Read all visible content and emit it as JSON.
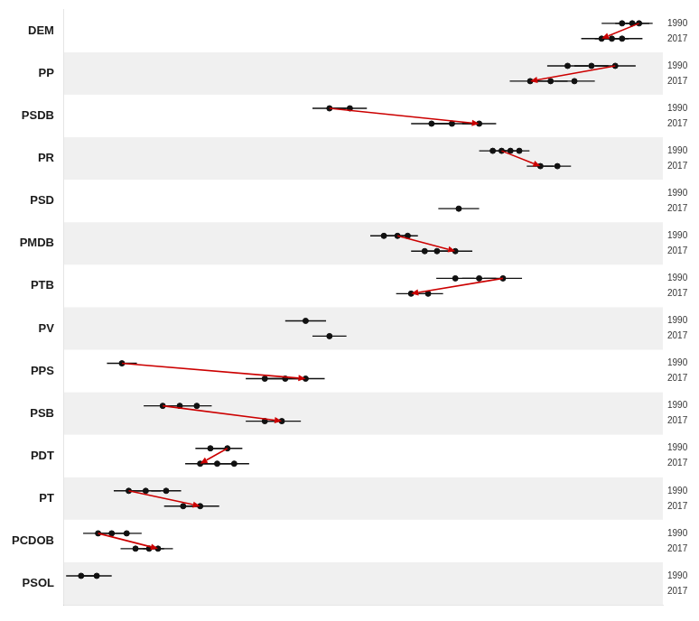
{
  "chart_data": {
    "type": "dot_plot",
    "categories": [
      "DEM",
      "PP",
      "PSDB",
      "PR",
      "PSD",
      "PMDB",
      "PTB",
      "PV",
      "PPS",
      "PSB",
      "PDT",
      "PT",
      "PCDOB",
      "PSOL"
    ],
    "series": [
      {
        "name": "1990",
        "color": "#111111",
        "values": [
          [
            0.82,
            0.835,
            0.845
          ],
          [
            0.74,
            0.775,
            0.81
          ],
          [
            0.39,
            0.42
          ],
          [
            0.63,
            0.643,
            0.656,
            0.669
          ],
          [],
          [
            0.47,
            0.49,
            0.505
          ],
          [
            0.575,
            0.61,
            0.645
          ],
          [
            0.355
          ],
          [
            0.085
          ],
          [
            0.145,
            0.17,
            0.195
          ],
          [
            0.215,
            0.24
          ],
          [
            0.095,
            0.12,
            0.15
          ],
          [
            0.05,
            0.07,
            0.092
          ],
          [
            0.025,
            0.048
          ]
        ],
        "errors": [
          [
            0.03,
            0.025,
            0.02
          ],
          [
            0.03,
            0.025,
            0.03
          ],
          [
            0.025,
            0.025
          ],
          [
            0.02,
            0.015,
            0.015,
            0.015
          ],
          [],
          [
            0.02,
            0.02,
            0.015
          ],
          [
            0.028,
            0.025,
            0.028
          ],
          [
            0.03
          ],
          [
            0.022
          ],
          [
            0.028,
            0.022,
            0.022
          ],
          [
            0.022,
            0.022
          ],
          [
            0.022,
            0.022,
            0.022
          ],
          [
            0.022,
            0.022,
            0.022
          ],
          [
            0.022,
            0.022
          ]
        ]
      },
      {
        "name": "2017",
        "color": "#111111",
        "values": [
          [
            0.79,
            0.805,
            0.82
          ],
          [
            0.685,
            0.715,
            0.75
          ],
          [
            0.54,
            0.57,
            0.61
          ],
          [
            0.7,
            0.725
          ],
          [
            0.58
          ],
          [
            0.53,
            0.548,
            0.575
          ],
          [
            0.51,
            0.535
          ],
          [
            0.39
          ],
          [
            0.295,
            0.325,
            0.355
          ],
          [
            0.295,
            0.32
          ],
          [
            0.2,
            0.225,
            0.25
          ],
          [
            0.175,
            0.2
          ],
          [
            0.105,
            0.125,
            0.138
          ],
          []
        ],
        "errors": [
          [
            0.03,
            0.025,
            0.03
          ],
          [
            0.03,
            0.025,
            0.03
          ],
          [
            0.03,
            0.03,
            0.025
          ],
          [
            0.02,
            0.02
          ],
          [
            0.03
          ],
          [
            0.02,
            0.02,
            0.025
          ],
          [
            0.022,
            0.022
          ],
          [
            0.025
          ],
          [
            0.028,
            0.028,
            0.028
          ],
          [
            0.028,
            0.028
          ],
          [
            0.022,
            0.022,
            0.022
          ],
          [
            0.028,
            0.028
          ],
          [
            0.022,
            0.022,
            0.022
          ],
          []
        ]
      }
    ],
    "arrows": [
      {
        "category": "DEM",
        "from": {
          "x": 0.845,
          "row": "1990"
        },
        "to": {
          "x": 0.79,
          "row": "2017"
        }
      },
      {
        "category": "PP",
        "from": {
          "x": 0.81,
          "row": "1990"
        },
        "to": {
          "x": 0.685,
          "row": "2017"
        }
      },
      {
        "category": "PSDB",
        "from": {
          "x": 0.39,
          "row": "1990"
        },
        "to": {
          "x": 0.61,
          "row": "2017"
        }
      },
      {
        "category": "PR",
        "from": {
          "x": 0.643,
          "row": "1990"
        },
        "to": {
          "x": 0.7,
          "row": "2017"
        }
      },
      {
        "category": "PMDB",
        "from": {
          "x": 0.49,
          "row": "1990"
        },
        "to": {
          "x": 0.575,
          "row": "2017"
        }
      },
      {
        "category": "PTB",
        "from": {
          "x": 0.645,
          "row": "1990"
        },
        "to": {
          "x": 0.51,
          "row": "2017"
        }
      },
      {
        "category": "PPS",
        "from": {
          "x": 0.085,
          "row": "1990"
        },
        "to": {
          "x": 0.355,
          "row": "2017"
        }
      },
      {
        "category": "PSB",
        "from": {
          "x": 0.145,
          "row": "1990"
        },
        "to": {
          "x": 0.32,
          "row": "2017"
        }
      },
      {
        "category": "PDT",
        "from": {
          "x": 0.24,
          "row": "1990"
        },
        "to": {
          "x": 0.2,
          "row": "2017"
        }
      },
      {
        "category": "PT",
        "from": {
          "x": 0.095,
          "row": "1990"
        },
        "to": {
          "x": 0.2,
          "row": "2017"
        }
      },
      {
        "category": "PCDOB",
        "from": {
          "x": 0.05,
          "row": "1990"
        },
        "to": {
          "x": 0.138,
          "row": "2017"
        }
      }
    ],
    "arrow_color": "#cc0000",
    "xlim": [
      0.0,
      0.88
    ],
    "tick_labels": "y",
    "grid": false
  }
}
